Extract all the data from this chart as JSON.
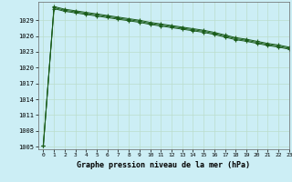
{
  "title": "Graphe pression niveau de la mer (hPa)",
  "background_color": "#cceef5",
  "grid_color": "#bbddcc",
  "line_color": "#1a5c1a",
  "marker": "+",
  "xlim": [
    -0.5,
    23
  ],
  "ylim": [
    1004.5,
    1032.5
  ],
  "yticks": [
    1005,
    1008,
    1011,
    1014,
    1017,
    1020,
    1023,
    1026,
    1029
  ],
  "xticks": [
    0,
    1,
    2,
    3,
    4,
    5,
    6,
    7,
    8,
    9,
    10,
    11,
    12,
    13,
    14,
    15,
    16,
    17,
    18,
    19,
    20,
    21,
    22,
    23
  ],
  "series": [
    [
      1005.2,
      1031.2,
      1030.7,
      1030.4,
      1030.1,
      1029.8,
      1029.5,
      1029.2,
      1028.9,
      1028.6,
      1028.2,
      1027.9,
      1027.6,
      1027.3,
      1027.0,
      1026.7,
      1026.3,
      1025.8,
      1025.3,
      1025.0,
      1024.6,
      1024.2,
      1023.9,
      1023.5
    ],
    [
      1005.2,
      1031.4,
      1030.9,
      1030.6,
      1030.3,
      1030.0,
      1029.7,
      1029.4,
      1029.1,
      1028.8,
      1028.4,
      1028.1,
      1027.8,
      1027.5,
      1027.2,
      1026.9,
      1026.5,
      1026.0,
      1025.5,
      1025.2,
      1024.8,
      1024.4,
      1024.1,
      1023.7
    ],
    [
      1005.2,
      1031.6,
      1031.1,
      1030.8,
      1030.5,
      1030.2,
      1029.9,
      1029.6,
      1029.3,
      1029.0,
      1028.6,
      1028.3,
      1028.0,
      1027.7,
      1027.4,
      1027.1,
      1026.7,
      1026.2,
      1025.7,
      1025.4,
      1025.0,
      1024.6,
      1024.3,
      1023.9
    ]
  ]
}
